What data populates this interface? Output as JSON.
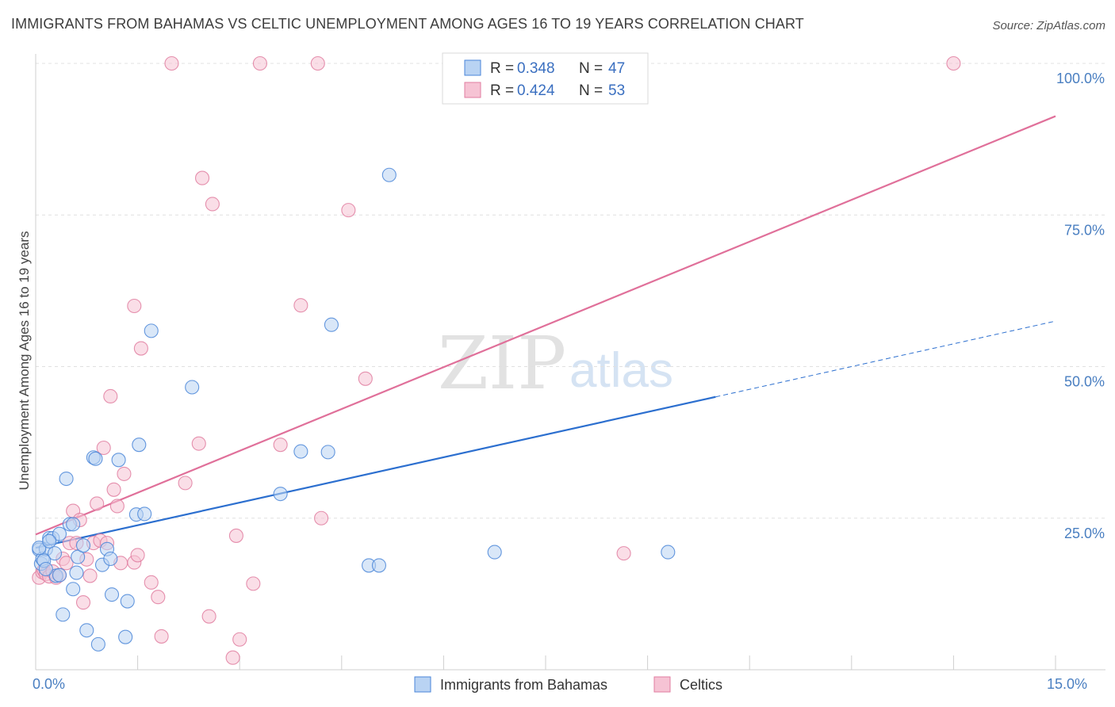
{
  "title": "IMMIGRANTS FROM BAHAMAS VS CELTIC UNEMPLOYMENT AMONG AGES 16 TO 19 YEARS CORRELATION CHART",
  "source": "Source: ZipAtlas.com",
  "colors": {
    "blue": "#4a86d8",
    "blue_fill": "#b9d3f3",
    "blue_line": "#2c6fcf",
    "pink": "#e07ea0",
    "pink_fill": "#f6c3d4",
    "pink_line": "#e0709a",
    "grid": "#e0e0e0",
    "tick_label": "#4a7fc1"
  },
  "legend": {
    "items": [
      {
        "r_label": "R =",
        "r_value": "0.348",
        "n_label": "N =",
        "n_value": "47"
      },
      {
        "r_label": "R =",
        "r_value": "0.424",
        "n_label": "N =",
        "n_value": "53"
      }
    ]
  },
  "bottom_legend": [
    "Immigrants from Bahamas",
    "Celtics"
  ],
  "watermark": {
    "zip": "ZIP",
    "atlas": "atlas"
  },
  "chart_data": {
    "type": "scatter",
    "title": "IMMIGRANTS FROM BAHAMAS VS CELTIC UNEMPLOYMENT AMONG AGES 16 TO 19 YEARS CORRELATION CHART",
    "xlabel": "",
    "ylabel": "Unemployment Among Ages 16 to 19 years",
    "xlim": [
      0,
      15
    ],
    "ylim": [
      0,
      100
    ],
    "x_tick_labels": [
      {
        "value": 0,
        "label": "0.0%"
      },
      {
        "value": 15,
        "label": "15.0%"
      }
    ],
    "y_tick_labels": [
      {
        "value": 25,
        "label": "25.0%"
      },
      {
        "value": 50,
        "label": "50.0%"
      },
      {
        "value": 75,
        "label": "75.0%"
      },
      {
        "value": 100,
        "label": "100.0%"
      }
    ],
    "x_ticks": [
      0,
      1.5,
      3,
      4.5,
      6,
      7.5,
      9,
      10.5,
      12,
      13.5,
      15
    ],
    "grid": true,
    "series": [
      {
        "name": "Immigrants from Bahamas",
        "color": "blue",
        "points": [
          [
            0.05,
            19.8
          ],
          [
            0.08,
            17.5
          ],
          [
            0.1,
            18.3
          ],
          [
            0.15,
            19.9
          ],
          [
            0.2,
            21.7
          ],
          [
            0.25,
            21.7
          ],
          [
            0.28,
            19.2
          ],
          [
            0.3,
            15.5
          ],
          [
            0.35,
            22.4
          ],
          [
            0.4,
            9.1
          ],
          [
            0.45,
            31.5
          ],
          [
            0.5,
            24.0
          ],
          [
            0.55,
            13.3
          ],
          [
            0.55,
            24.0
          ],
          [
            0.6,
            16.0
          ],
          [
            0.62,
            18.6
          ],
          [
            0.7,
            20.5
          ],
          [
            0.75,
            6.5
          ],
          [
            0.85,
            35.0
          ],
          [
            0.88,
            34.8
          ],
          [
            0.92,
            4.2
          ],
          [
            0.98,
            17.3
          ],
          [
            1.05,
            19.9
          ],
          [
            1.1,
            18.3
          ],
          [
            1.12,
            12.4
          ],
          [
            1.22,
            34.6
          ],
          [
            1.32,
            5.4
          ],
          [
            1.35,
            11.3
          ],
          [
            1.48,
            25.6
          ],
          [
            1.52,
            37.1
          ],
          [
            1.6,
            25.7
          ],
          [
            1.7,
            55.9
          ],
          [
            2.3,
            46.6
          ],
          [
            3.6,
            29.0
          ],
          [
            3.9,
            36.0
          ],
          [
            4.3,
            35.9
          ],
          [
            4.35,
            56.9
          ],
          [
            4.9,
            17.2
          ],
          [
            5.05,
            17.2
          ],
          [
            5.2,
            81.6
          ],
          [
            6.75,
            19.4
          ],
          [
            9.3,
            19.4
          ],
          [
            0.05,
            20.1
          ],
          [
            0.12,
            18.0
          ],
          [
            0.35,
            15.6
          ],
          [
            0.2,
            21.2
          ],
          [
            0.15,
            16.6
          ]
        ]
      },
      {
        "name": "Celtics",
        "color": "pink",
        "points": [
          [
            0.05,
            15.2
          ],
          [
            0.1,
            16.1
          ],
          [
            0.12,
            16.4
          ],
          [
            0.15,
            15.8
          ],
          [
            0.2,
            15.4
          ],
          [
            0.25,
            16.2
          ],
          [
            0.3,
            15.2
          ],
          [
            0.35,
            15.6
          ],
          [
            0.4,
            18.3
          ],
          [
            0.45,
            17.6
          ],
          [
            0.5,
            20.9
          ],
          [
            0.55,
            26.2
          ],
          [
            0.6,
            20.9
          ],
          [
            0.65,
            24.7
          ],
          [
            0.7,
            11.1
          ],
          [
            0.75,
            18.2
          ],
          [
            0.8,
            15.5
          ],
          [
            0.85,
            20.9
          ],
          [
            0.9,
            27.4
          ],
          [
            0.95,
            21.3
          ],
          [
            1.0,
            36.6
          ],
          [
            1.05,
            20.9
          ],
          [
            1.1,
            45.1
          ],
          [
            1.15,
            29.7
          ],
          [
            1.2,
            27.0
          ],
          [
            1.25,
            17.6
          ],
          [
            1.3,
            32.3
          ],
          [
            1.45,
            17.7
          ],
          [
            1.5,
            18.9
          ],
          [
            1.55,
            53.0
          ],
          [
            1.45,
            60.0
          ],
          [
            1.7,
            14.4
          ],
          [
            1.8,
            12.0
          ],
          [
            1.85,
            5.5
          ],
          [
            2.0,
            100.0
          ],
          [
            2.2,
            30.8
          ],
          [
            2.4,
            37.3
          ],
          [
            2.45,
            81.1
          ],
          [
            2.55,
            8.8
          ],
          [
            2.6,
            76.8
          ],
          [
            2.9,
            2.0
          ],
          [
            2.95,
            22.1
          ],
          [
            3.0,
            5.0
          ],
          [
            3.2,
            14.2
          ],
          [
            3.3,
            100.0
          ],
          [
            3.6,
            37.1
          ],
          [
            3.9,
            60.1
          ],
          [
            4.15,
            100.0
          ],
          [
            4.2,
            25.0
          ],
          [
            4.6,
            75.8
          ],
          [
            4.85,
            48.0
          ],
          [
            8.65,
            19.2
          ],
          [
            13.5,
            100.0
          ]
        ]
      }
    ],
    "trend_lines": [
      {
        "series": "Immigrants from Bahamas",
        "x": [
          0,
          10.0
        ],
        "y": [
          20.1,
          45.0
        ],
        "dashed_extension": {
          "x": [
            10.0,
            15.0
          ],
          "y": [
            45.0,
            57.5
          ]
        }
      },
      {
        "series": "Celtics",
        "x": [
          0,
          15.0
        ],
        "y": [
          22.3,
          91.3
        ]
      }
    ]
  }
}
